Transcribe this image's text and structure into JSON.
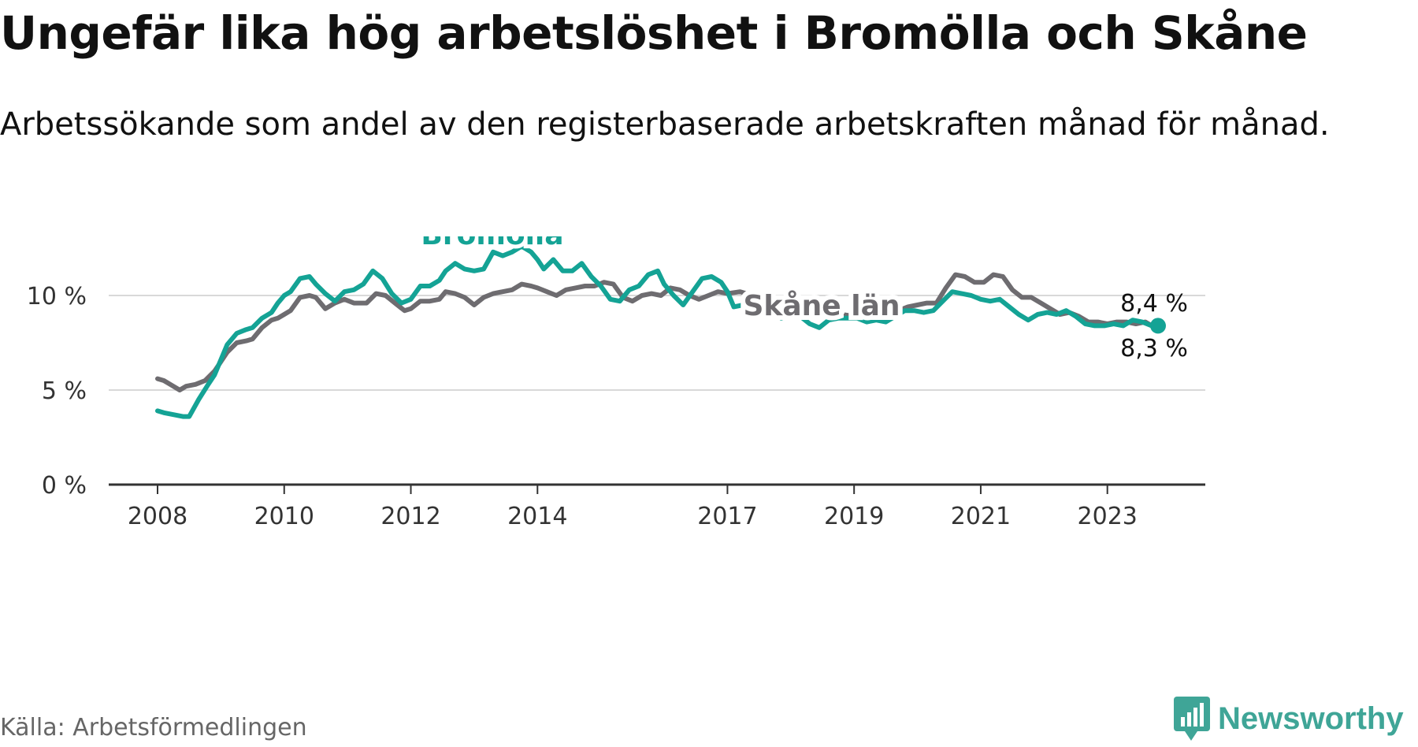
{
  "title": "Ungefär lika hög arbetslöshet i Bromölla och Skåne",
  "subtitle": "Arbetssökande som andel av den registerbaserade arbetskraften månad för månad.",
  "source": "Källa: Arbetsförmedlingen",
  "brand": {
    "name": "Newsworthy",
    "icon": "newsworthy-logo-icon"
  },
  "colors": {
    "bromolla": "#14a395",
    "skane": "#6e6c70",
    "grid": "#d9d9d9",
    "axis": "#333333"
  },
  "chart_data": {
    "type": "line",
    "title": "Ungefär lika hög arbetslöshet i Bromölla och Skåne",
    "xlabel": "",
    "ylabel": "",
    "xlim": [
      2007.6,
      2024.0
    ],
    "ylim": [
      0,
      10
    ],
    "x_ticks": [
      2008,
      2010,
      2012,
      2014,
      2017,
      2019,
      2021,
      2023
    ],
    "x_tick_labels": [
      "2008",
      "2010",
      "2012",
      "2014",
      "2017",
      "2019",
      "2021",
      "2023"
    ],
    "y_ticks": [
      0,
      5,
      10
    ],
    "y_tick_labels": [
      "0 %",
      "5 %",
      "10 %"
    ],
    "grid": true,
    "series": [
      {
        "name": "Skåne län",
        "label": "Skåne län",
        "end_label": "8,3 %",
        "points": [
          [
            2008.0,
            5.6
          ],
          [
            2008.1,
            5.5
          ],
          [
            2008.2,
            5.3
          ],
          [
            2008.35,
            5.0
          ],
          [
            2008.45,
            5.2
          ],
          [
            2008.6,
            5.3
          ],
          [
            2008.75,
            5.5
          ],
          [
            2008.9,
            6.0
          ],
          [
            2009.0,
            6.5
          ],
          [
            2009.1,
            7.0
          ],
          [
            2009.25,
            7.5
          ],
          [
            2009.4,
            7.6
          ],
          [
            2009.5,
            7.7
          ],
          [
            2009.65,
            8.3
          ],
          [
            2009.8,
            8.7
          ],
          [
            2009.9,
            8.8
          ],
          [
            2010.0,
            9.0
          ],
          [
            2010.1,
            9.2
          ],
          [
            2010.25,
            9.9
          ],
          [
            2010.4,
            10.0
          ],
          [
            2010.5,
            9.9
          ],
          [
            2010.65,
            9.3
          ],
          [
            2010.8,
            9.6
          ],
          [
            2010.95,
            9.8
          ],
          [
            2011.1,
            9.6
          ],
          [
            2011.3,
            9.6
          ],
          [
            2011.45,
            10.1
          ],
          [
            2011.6,
            10.0
          ],
          [
            2011.75,
            9.6
          ],
          [
            2011.9,
            9.2
          ],
          [
            2012.0,
            9.3
          ],
          [
            2012.15,
            9.7
          ],
          [
            2012.3,
            9.7
          ],
          [
            2012.45,
            9.8
          ],
          [
            2012.55,
            10.2
          ],
          [
            2012.7,
            10.1
          ],
          [
            2012.85,
            9.9
          ],
          [
            2013.0,
            9.5
          ],
          [
            2013.15,
            9.9
          ],
          [
            2013.3,
            10.1
          ],
          [
            2013.45,
            10.2
          ],
          [
            2013.6,
            10.3
          ],
          [
            2013.75,
            10.6
          ],
          [
            2013.9,
            10.5
          ],
          [
            2014.0,
            10.4
          ],
          [
            2014.15,
            10.2
          ],
          [
            2014.3,
            10.0
          ],
          [
            2014.45,
            10.3
          ],
          [
            2014.6,
            10.4
          ],
          [
            2014.75,
            10.5
          ],
          [
            2014.9,
            10.5
          ],
          [
            2015.05,
            10.7
          ],
          [
            2015.2,
            10.6
          ],
          [
            2015.35,
            9.9
          ],
          [
            2015.5,
            9.7
          ],
          [
            2015.65,
            10.0
          ],
          [
            2015.8,
            10.1
          ],
          [
            2015.95,
            10.0
          ],
          [
            2016.1,
            10.4
          ],
          [
            2016.25,
            10.3
          ],
          [
            2016.4,
            10.0
          ],
          [
            2016.55,
            9.8
          ],
          [
            2016.7,
            10.0
          ],
          [
            2016.85,
            10.2
          ],
          [
            2017.0,
            10.1
          ],
          [
            2017.2,
            10.2
          ],
          [
            2017.4,
            10.0
          ],
          [
            2017.6,
            9.6
          ],
          [
            2017.8,
            9.3
          ],
          [
            2018.0,
            9.4
          ],
          [
            2018.2,
            9.2
          ],
          [
            2018.4,
            9.3
          ],
          [
            2018.6,
            9.1
          ],
          [
            2018.8,
            9.0
          ],
          [
            2019.0,
            8.9
          ],
          [
            2019.2,
            8.9
          ],
          [
            2019.4,
            8.9
          ],
          [
            2019.55,
            9.2
          ],
          [
            2019.7,
            9.2
          ],
          [
            2019.85,
            9.4
          ],
          [
            2020.0,
            9.5
          ],
          [
            2020.15,
            9.6
          ],
          [
            2020.3,
            9.6
          ],
          [
            2020.45,
            10.4
          ],
          [
            2020.6,
            11.1
          ],
          [
            2020.75,
            11.0
          ],
          [
            2020.9,
            10.7
          ],
          [
            2021.05,
            10.7
          ],
          [
            2021.2,
            11.1
          ],
          [
            2021.35,
            11.0
          ],
          [
            2021.5,
            10.3
          ],
          [
            2021.65,
            9.9
          ],
          [
            2021.8,
            9.9
          ],
          [
            2021.95,
            9.6
          ],
          [
            2022.1,
            9.3
          ],
          [
            2022.25,
            9.0
          ],
          [
            2022.4,
            9.1
          ],
          [
            2022.55,
            8.9
          ],
          [
            2022.7,
            8.6
          ],
          [
            2022.85,
            8.6
          ],
          [
            2023.0,
            8.5
          ],
          [
            2023.15,
            8.6
          ],
          [
            2023.3,
            8.6
          ],
          [
            2023.45,
            8.5
          ],
          [
            2023.6,
            8.6
          ],
          [
            2023.7,
            8.4
          ],
          [
            2023.8,
            8.3
          ]
        ]
      },
      {
        "name": "Bromölla",
        "label": "Bromölla",
        "end_label": "8,4 %",
        "points": [
          [
            2008.0,
            3.9
          ],
          [
            2008.1,
            3.8
          ],
          [
            2008.25,
            3.7
          ],
          [
            2008.4,
            3.6
          ],
          [
            2008.5,
            3.6
          ],
          [
            2008.65,
            4.5
          ],
          [
            2008.8,
            5.3
          ],
          [
            2008.9,
            5.8
          ],
          [
            2009.0,
            6.6
          ],
          [
            2009.1,
            7.4
          ],
          [
            2009.25,
            8.0
          ],
          [
            2009.4,
            8.2
          ],
          [
            2009.5,
            8.3
          ],
          [
            2009.65,
            8.8
          ],
          [
            2009.8,
            9.1
          ],
          [
            2009.9,
            9.6
          ],
          [
            2010.0,
            10.0
          ],
          [
            2010.1,
            10.2
          ],
          [
            2010.25,
            10.9
          ],
          [
            2010.4,
            11.0
          ],
          [
            2010.5,
            10.6
          ],
          [
            2010.65,
            10.1
          ],
          [
            2010.8,
            9.7
          ],
          [
            2010.95,
            10.2
          ],
          [
            2011.1,
            10.3
          ],
          [
            2011.25,
            10.6
          ],
          [
            2011.4,
            11.3
          ],
          [
            2011.55,
            10.9
          ],
          [
            2011.7,
            10.1
          ],
          [
            2011.85,
            9.6
          ],
          [
            2012.0,
            9.8
          ],
          [
            2012.15,
            10.5
          ],
          [
            2012.3,
            10.5
          ],
          [
            2012.45,
            10.8
          ],
          [
            2012.55,
            11.3
          ],
          [
            2012.7,
            11.7
          ],
          [
            2012.85,
            11.4
          ],
          [
            2013.0,
            11.3
          ],
          [
            2013.15,
            11.4
          ],
          [
            2013.3,
            12.3
          ],
          [
            2013.45,
            12.1
          ],
          [
            2013.6,
            12.3
          ],
          [
            2013.75,
            12.6
          ],
          [
            2013.9,
            12.3
          ],
          [
            2014.0,
            11.9
          ],
          [
            2014.1,
            11.4
          ],
          [
            2014.25,
            11.9
          ],
          [
            2014.4,
            11.3
          ],
          [
            2014.55,
            11.3
          ],
          [
            2014.7,
            11.7
          ],
          [
            2014.85,
            11.0
          ],
          [
            2015.0,
            10.5
          ],
          [
            2015.15,
            9.8
          ],
          [
            2015.3,
            9.7
          ],
          [
            2015.45,
            10.3
          ],
          [
            2015.6,
            10.5
          ],
          [
            2015.75,
            11.1
          ],
          [
            2015.9,
            11.3
          ],
          [
            2016.0,
            10.6
          ],
          [
            2016.15,
            10.0
          ],
          [
            2016.3,
            9.5
          ],
          [
            2016.45,
            10.2
          ],
          [
            2016.6,
            10.9
          ],
          [
            2016.75,
            11.0
          ],
          [
            2016.9,
            10.7
          ],
          [
            2017.0,
            10.2
          ],
          [
            2017.1,
            9.4
          ],
          [
            2017.25,
            9.5
          ],
          [
            2017.4,
            10.0
          ],
          [
            2017.55,
            10.0
          ],
          [
            2017.7,
            9.4
          ],
          [
            2017.85,
            8.8
          ],
          [
            2018.0,
            9.0
          ],
          [
            2018.15,
            8.9
          ],
          [
            2018.3,
            8.5
          ],
          [
            2018.45,
            8.3
          ],
          [
            2018.6,
            8.7
          ],
          [
            2018.75,
            8.8
          ],
          [
            2018.9,
            8.8
          ],
          [
            2019.05,
            8.8
          ],
          [
            2019.2,
            8.6
          ],
          [
            2019.35,
            8.7
          ],
          [
            2019.5,
            8.6
          ],
          [
            2019.65,
            8.9
          ],
          [
            2019.8,
            9.2
          ],
          [
            2019.95,
            9.2
          ],
          [
            2020.1,
            9.1
          ],
          [
            2020.25,
            9.2
          ],
          [
            2020.4,
            9.7
          ],
          [
            2020.55,
            10.2
          ],
          [
            2020.7,
            10.1
          ],
          [
            2020.85,
            10.0
          ],
          [
            2021.0,
            9.8
          ],
          [
            2021.15,
            9.7
          ],
          [
            2021.3,
            9.8
          ],
          [
            2021.45,
            9.4
          ],
          [
            2021.6,
            9.0
          ],
          [
            2021.75,
            8.7
          ],
          [
            2021.9,
            9.0
          ],
          [
            2022.05,
            9.1
          ],
          [
            2022.2,
            9.0
          ],
          [
            2022.35,
            9.2
          ],
          [
            2022.5,
            8.9
          ],
          [
            2022.65,
            8.5
          ],
          [
            2022.8,
            8.4
          ],
          [
            2022.95,
            8.4
          ],
          [
            2023.1,
            8.5
          ],
          [
            2023.25,
            8.4
          ],
          [
            2023.4,
            8.7
          ],
          [
            2023.55,
            8.6
          ],
          [
            2023.7,
            8.4
          ],
          [
            2023.8,
            8.4
          ]
        ]
      }
    ],
    "annotations": [
      {
        "text": "Bromölla",
        "series": "Bromölla"
      },
      {
        "text": "Skåne län",
        "series": "Skåne län"
      }
    ],
    "legend": "inline labels"
  }
}
